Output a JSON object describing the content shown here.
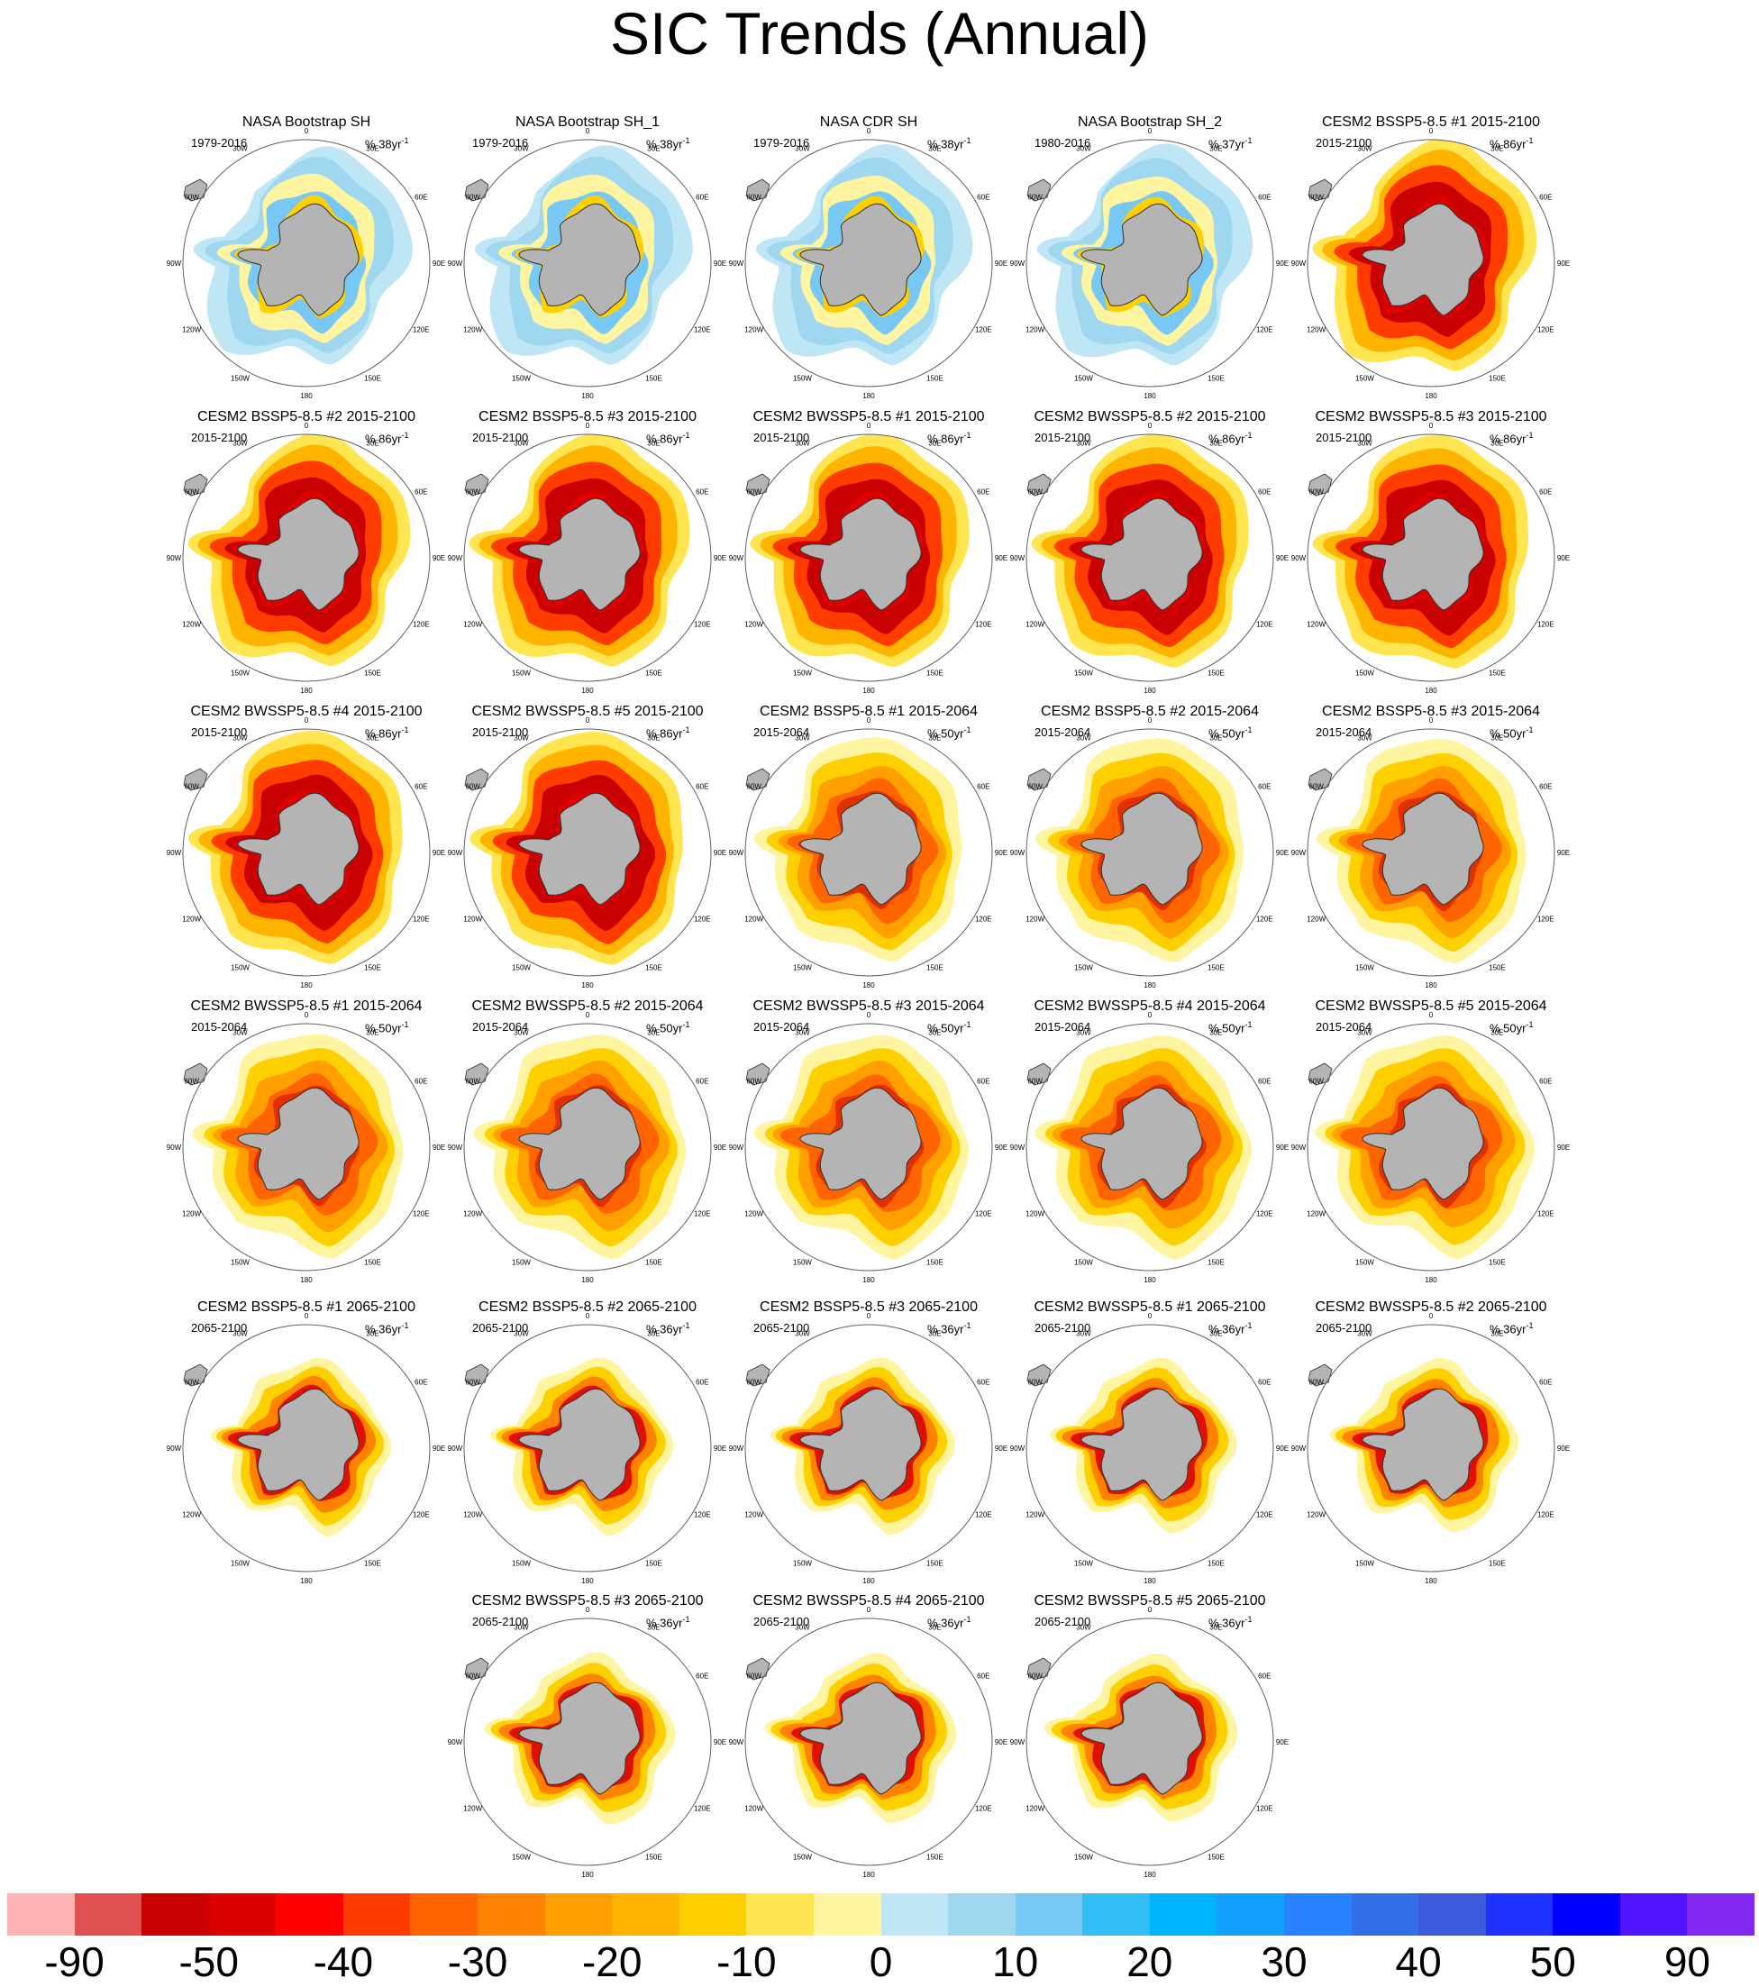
{
  "title": "SIC Trends (Annual)",
  "units_prefix": "% ",
  "units_suffix": "yr",
  "units_exponent": "-1",
  "map_colors": {
    "land": "#b4b4b4",
    "coast": "#303030",
    "frame": "#606060",
    "bg": "#ffffff"
  },
  "lon_labels": [
    "0",
    "30E",
    "60E",
    "90E",
    "120E",
    "150E",
    "180",
    "150W",
    "120W",
    "90W",
    "60W",
    "30W"
  ],
  "panels": [
    {
      "title": "NASA Bootstrap SH",
      "period": "1979-2016",
      "scale": "38",
      "kind": "obs"
    },
    {
      "title": "NASA Bootstrap SH_1",
      "period": "1979-2016",
      "scale": "38",
      "kind": "obs"
    },
    {
      "title": "NASA CDR SH",
      "period": "1979-2016",
      "scale": "38",
      "kind": "obs"
    },
    {
      "title": "NASA Bootstrap SH_2",
      "period": "1980-2016",
      "scale": "37",
      "kind": "obs"
    },
    {
      "title": "CESM2 BSSP5-8.5 #1 2015-2100",
      "period": "2015-2100",
      "scale": "86",
      "kind": "strong"
    },
    {
      "title": "CESM2 BSSP5-8.5 #2 2015-2100",
      "period": "2015-2100",
      "scale": "86",
      "kind": "strong"
    },
    {
      "title": "CESM2 BSSP5-8.5 #3 2015-2100",
      "period": "2015-2100",
      "scale": "86",
      "kind": "strong"
    },
    {
      "title": "CESM2 BWSSP5-8.5 #1 2015-2100",
      "period": "2015-2100",
      "scale": "86",
      "kind": "strong"
    },
    {
      "title": "CESM2 BWSSP5-8.5 #2 2015-2100",
      "period": "2015-2100",
      "scale": "86",
      "kind": "strong"
    },
    {
      "title": "CESM2 BWSSP5-8.5 #3 2015-2100",
      "period": "2015-2100",
      "scale": "86",
      "kind": "strong"
    },
    {
      "title": "CESM2 BWSSP5-8.5 #4 2015-2100",
      "period": "2015-2100",
      "scale": "86",
      "kind": "strong"
    },
    {
      "title": "CESM2 BWSSP5-8.5 #5 2015-2100",
      "period": "2015-2100",
      "scale": "86",
      "kind": "strong"
    },
    {
      "title": "CESM2 BSSP5-8.5 #1 2015-2064",
      "period": "2015-2064",
      "scale": "50",
      "kind": "medium"
    },
    {
      "title": "CESM2 BSSP5-8.5 #2 2015-2064",
      "period": "2015-2064",
      "scale": "50",
      "kind": "medium"
    },
    {
      "title": "CESM2 BSSP5-8.5 #3 2015-2064",
      "period": "2015-2064",
      "scale": "50",
      "kind": "medium"
    },
    {
      "title": "CESM2 BWSSP5-8.5 #1 2015-2064",
      "period": "2015-2064",
      "scale": "50",
      "kind": "medium"
    },
    {
      "title": "CESM2 BWSSP5-8.5 #2 2015-2064",
      "period": "2015-2064",
      "scale": "50",
      "kind": "medium"
    },
    {
      "title": "CESM2 BWSSP5-8.5 #3 2015-2064",
      "period": "2015-2064",
      "scale": "50",
      "kind": "medium"
    },
    {
      "title": "CESM2 BWSSP5-8.5 #4 2015-2064",
      "period": "2015-2064",
      "scale": "50",
      "kind": "medium"
    },
    {
      "title": "CESM2 BWSSP5-8.5 #5 2015-2064",
      "period": "2015-2064",
      "scale": "50",
      "kind": "medium"
    },
    {
      "title": "CESM2 BSSP5-8.5 #1 2065-2100",
      "period": "2065-2100",
      "scale": "36",
      "kind": "late"
    },
    {
      "title": "CESM2 BSSP5-8.5 #2 2065-2100",
      "period": "2065-2100",
      "scale": "36",
      "kind": "late"
    },
    {
      "title": "CESM2 BSSP5-8.5 #3 2065-2100",
      "period": "2065-2100",
      "scale": "36",
      "kind": "late"
    },
    {
      "title": "CESM2 BWSSP5-8.5 #1 2065-2100",
      "period": "2065-2100",
      "scale": "36",
      "kind": "late"
    },
    {
      "title": "CESM2 BWSSP5-8.5 #2 2065-2100",
      "period": "2065-2100",
      "scale": "36",
      "kind": "late"
    },
    {
      "title": "CESM2 BWSSP5-8.5 #3 2065-2100",
      "period": "2065-2100",
      "scale": "36",
      "kind": "late"
    },
    {
      "title": "CESM2 BWSSP5-8.5 #4 2065-2100",
      "period": "2065-2100",
      "scale": "36",
      "kind": "late"
    },
    {
      "title": "CESM2 BWSSP5-8.5 #5 2065-2100",
      "period": "2065-2100",
      "scale": "36",
      "kind": "late"
    }
  ],
  "colorbar": {
    "colors": [
      "#ffb4b4",
      "#e05050",
      "#c80000",
      "#dc0000",
      "#ff0000",
      "#ff3c00",
      "#ff6400",
      "#ff8200",
      "#ffa000",
      "#ffb400",
      "#ffd000",
      "#ffe650",
      "#fff5a0",
      "#bee6f5",
      "#a0d7f0",
      "#78c8f5",
      "#32bef5",
      "#00b4ff",
      "#14a0ff",
      "#2882ff",
      "#326ee6",
      "#3c5adc",
      "#1e32ff",
      "#0000ff",
      "#5014ff",
      "#8228f0"
    ],
    "labels": [
      "-90",
      "-50",
      "-40",
      "-30",
      "-20",
      "-10",
      "0",
      "10",
      "20",
      "30",
      "40",
      "50",
      "90"
    ]
  }
}
